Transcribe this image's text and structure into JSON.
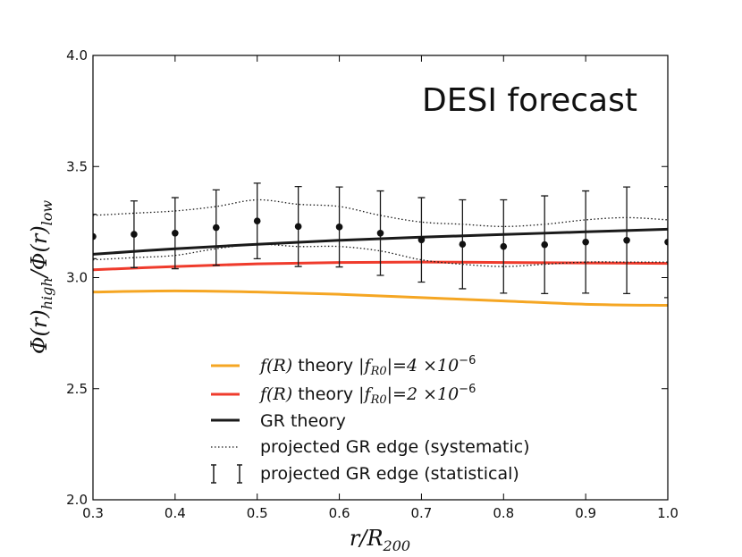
{
  "chart_data": {
    "type": "line",
    "annotation": "DESI forecast",
    "xlabel": {
      "main": "r/R",
      "sub": "200"
    },
    "ylabel": {
      "pre": "Φ(r)",
      "sub1": "high",
      "mid": "/Φ(r)",
      "sub2": "low"
    },
    "xlim": [
      0.3,
      1.0
    ],
    "ylim": [
      2.0,
      4.0
    ],
    "xticks": [
      0.3,
      0.4,
      0.5,
      0.6,
      0.7,
      0.8,
      0.9,
      1.0
    ],
    "xtick_labels": [
      "0.3",
      "0.4",
      "0.5",
      "0.6",
      "0.7",
      "0.8",
      "0.9",
      "1.0"
    ],
    "yticks": [
      2.0,
      2.5,
      3.0,
      3.5,
      4.0
    ],
    "ytick_labels": [
      "2.0",
      "2.5",
      "3.0",
      "3.5",
      "4.0"
    ],
    "colors": {
      "orange": "#f5a623",
      "red": "#ef3b2c",
      "black": "#1a1a1a"
    },
    "series": [
      {
        "name": "fR4",
        "kind": "line",
        "color": "#f5a623",
        "x": [
          0.3,
          0.4,
          0.5,
          0.6,
          0.7,
          0.8,
          0.9,
          1.0
        ],
        "values": [
          2.935,
          2.94,
          2.935,
          2.925,
          2.91,
          2.895,
          2.88,
          2.875
        ]
      },
      {
        "name": "fR2",
        "kind": "line",
        "color": "#ef3b2c",
        "x": [
          0.3,
          0.4,
          0.5,
          0.6,
          0.7,
          0.8,
          0.9,
          1.0
        ],
        "values": [
          3.035,
          3.05,
          3.062,
          3.068,
          3.07,
          3.068,
          3.066,
          3.064
        ]
      },
      {
        "name": "GR theory",
        "kind": "line",
        "color": "#1a1a1a",
        "x": [
          0.3,
          0.4,
          0.5,
          0.6,
          0.7,
          0.8,
          0.9,
          1.0
        ],
        "values": [
          3.105,
          3.13,
          3.15,
          3.168,
          3.182,
          3.194,
          3.206,
          3.218
        ]
      },
      {
        "name": "systematic upper",
        "kind": "dotted",
        "color": "#1a1a1a",
        "x": [
          0.3,
          0.35,
          0.4,
          0.45,
          0.5,
          0.55,
          0.6,
          0.65,
          0.7,
          0.75,
          0.8,
          0.85,
          0.9,
          0.95,
          1.0
        ],
        "values": [
          3.28,
          3.29,
          3.3,
          3.32,
          3.35,
          3.33,
          3.32,
          3.28,
          3.25,
          3.24,
          3.23,
          3.24,
          3.26,
          3.27,
          3.26
        ]
      },
      {
        "name": "systematic lower",
        "kind": "dotted",
        "color": "#1a1a1a",
        "x": [
          0.3,
          0.35,
          0.4,
          0.45,
          0.5,
          0.55,
          0.6,
          0.65,
          0.7,
          0.75,
          0.8,
          0.85,
          0.9,
          0.95,
          1.0
        ],
        "values": [
          3.08,
          3.09,
          3.1,
          3.13,
          3.15,
          3.14,
          3.14,
          3.12,
          3.08,
          3.06,
          3.05,
          3.06,
          3.07,
          3.07,
          3.07
        ]
      }
    ],
    "points": {
      "name": "statistical",
      "x": [
        0.3,
        0.35,
        0.4,
        0.45,
        0.5,
        0.55,
        0.6,
        0.65,
        0.7,
        0.75,
        0.8,
        0.85,
        0.9,
        0.95,
        1.0
      ],
      "y": [
        3.185,
        3.195,
        3.2,
        3.225,
        3.255,
        3.23,
        3.228,
        3.2,
        3.17,
        3.15,
        3.14,
        3.148,
        3.16,
        3.168,
        3.16
      ],
      "yerr": [
        0.1,
        0.15,
        0.16,
        0.17,
        0.17,
        0.18,
        0.18,
        0.19,
        0.19,
        0.2,
        0.21,
        0.22,
        0.23,
        0.24,
        0.25
      ]
    },
    "legend": {
      "position": "lower-center",
      "entries": [
        {
          "pre": "f(R)",
          "text": " theory ",
          "math": "|f",
          "sub": "R0",
          "post": "|=4 ×10",
          "sup": "−6"
        },
        {
          "pre": "f(R)",
          "text": " theory ",
          "math": "|f",
          "sub": "R0",
          "post": "|=2 ×10",
          "sup": "−6"
        },
        {
          "text": "GR theory"
        },
        {
          "text": "projected GR edge (systematic)"
        },
        {
          "text": "projected GR edge (statistical)"
        }
      ]
    }
  }
}
